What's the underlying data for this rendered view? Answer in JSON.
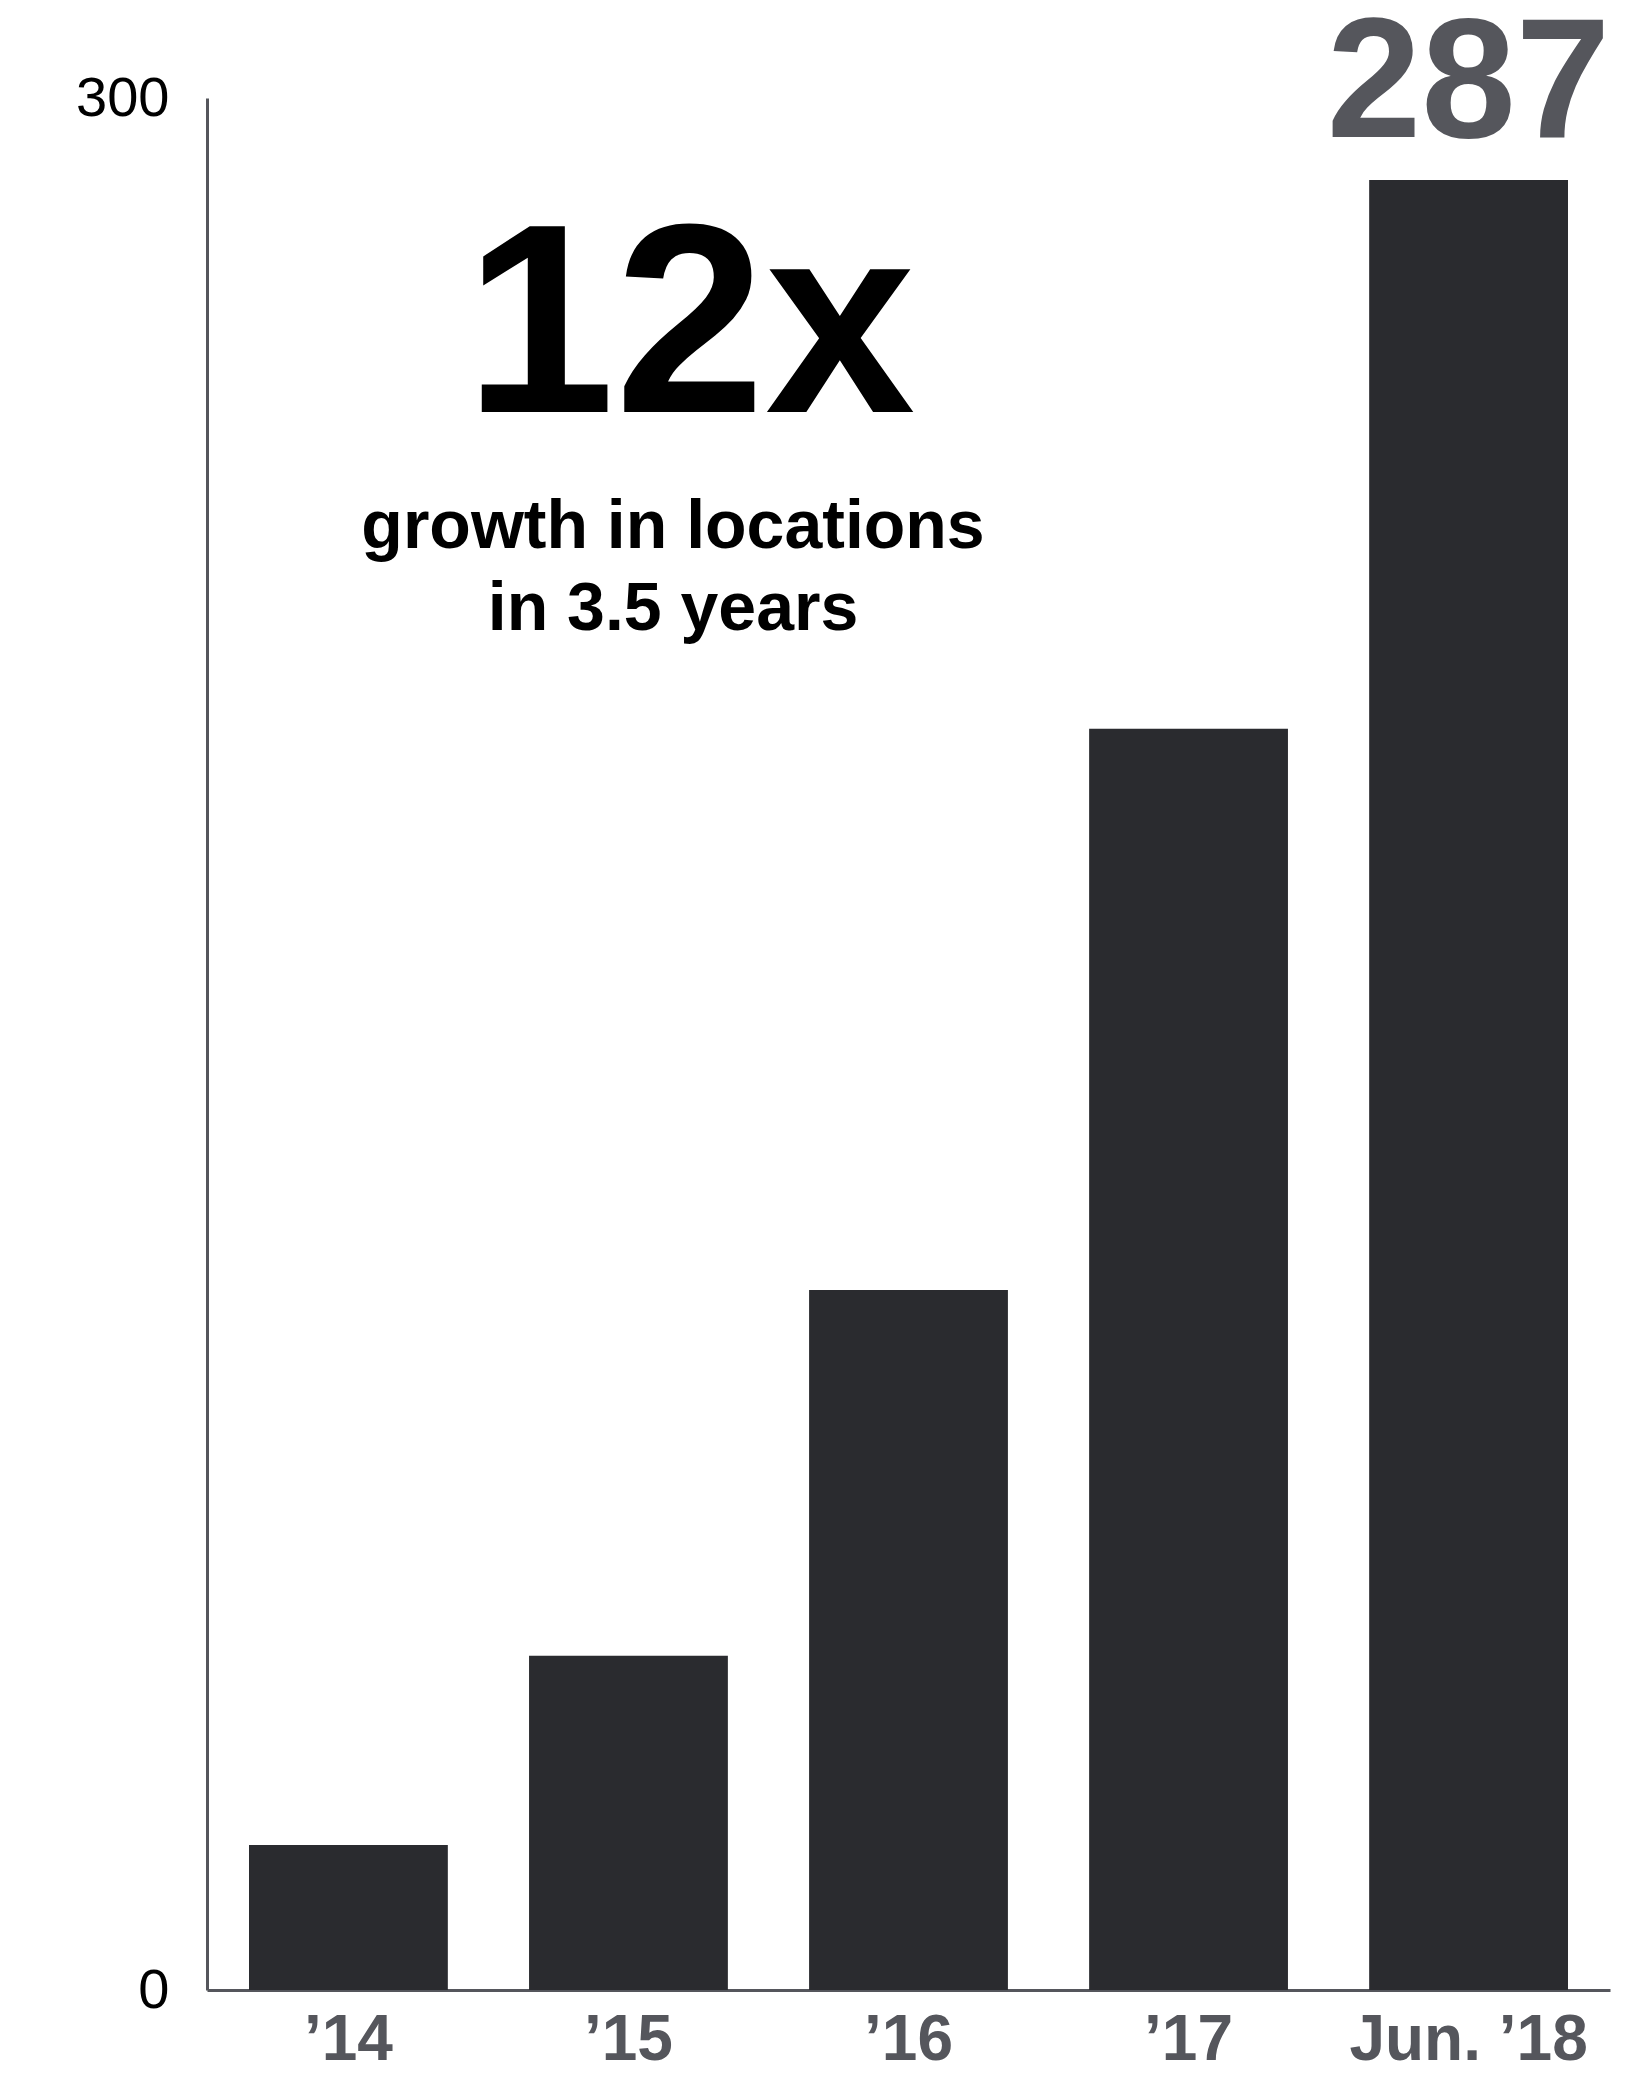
{
  "chart_data": {
    "type": "bar",
    "categories": [
      "’14",
      "’15",
      "’16",
      "’17",
      "Jun. ’18"
    ],
    "values": [
      23,
      53,
      111,
      200,
      287
    ],
    "value_labels": [
      null,
      null,
      null,
      null,
      "287"
    ],
    "color": "#2a2b2f",
    "ylim": [
      0,
      300
    ],
    "yticks": [
      0,
      300
    ],
    "grid": false,
    "annotations": [
      "12x",
      "growth in locations in 3.5 years"
    ]
  }
}
